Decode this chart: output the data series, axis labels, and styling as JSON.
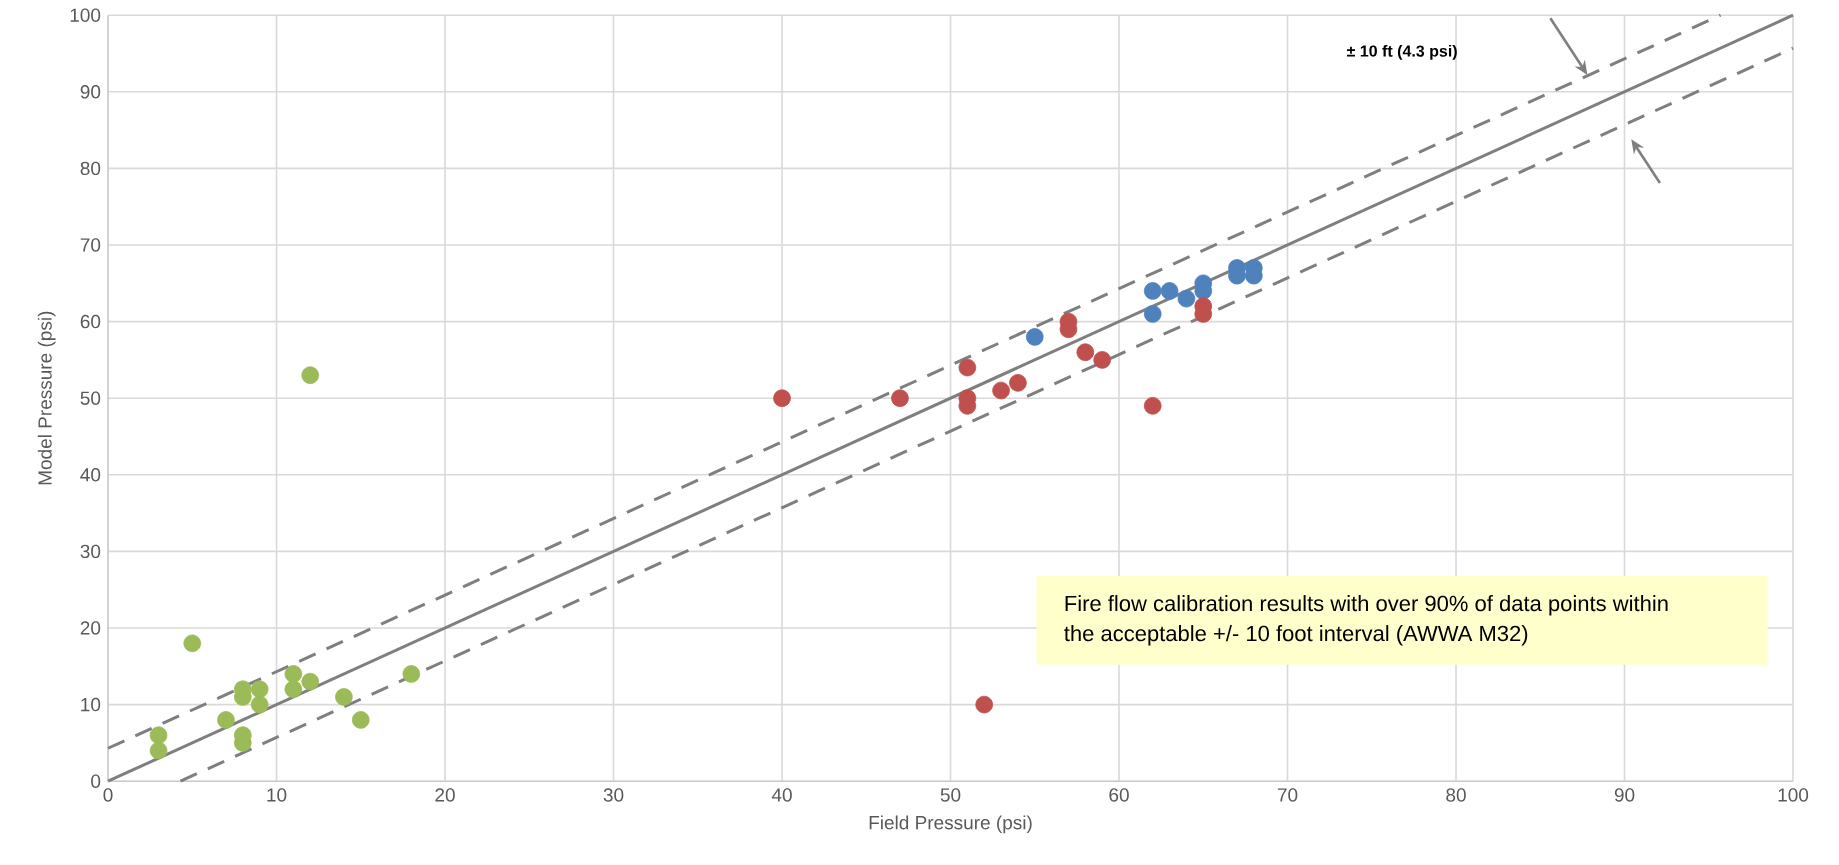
{
  "chart_data": {
    "type": "scatter",
    "xlabel": "Field Pressure (psi)",
    "ylabel": "Model Pressure (psi)",
    "xlim": [
      0,
      100
    ],
    "ylim": [
      0,
      100
    ],
    "xticks": [
      0,
      10,
      20,
      30,
      40,
      50,
      60,
      70,
      80,
      90,
      100
    ],
    "yticks": [
      0,
      10,
      20,
      30,
      40,
      50,
      60,
      70,
      80,
      90,
      100
    ],
    "grid": true,
    "annotations": [
      "± 10 ft (4.3 psi)",
      "Fire flow calibration results with over 90% of data points within the acceptable +/- 10 foot interval (AWWA M32)"
    ],
    "series": [
      {
        "color": "#9bbb59",
        "marker": "circle",
        "x": [
          3,
          3,
          5,
          7,
          8,
          8,
          8,
          8,
          9,
          9,
          11,
          11,
          12,
          12,
          14,
          15,
          18
        ],
        "values": [
          6,
          4,
          18,
          8,
          12,
          11,
          6,
          5,
          12,
          10,
          14,
          12,
          13,
          53,
          11,
          8,
          14
        ]
      },
      {
        "color": "#4f81bd",
        "marker": "circle",
        "x": [
          55,
          62,
          62,
          63,
          64,
          65,
          65,
          67,
          67,
          68,
          68
        ],
        "values": [
          58,
          64,
          61,
          64,
          63,
          65,
          64,
          67,
          66,
          67,
          66
        ]
      },
      {
        "color": "#c0504d",
        "marker": "circle",
        "x": [
          40,
          47,
          51,
          51,
          51,
          52,
          53,
          54,
          57,
          57,
          58,
          59,
          62,
          65,
          65
        ],
        "values": [
          50,
          50,
          54,
          50,
          49,
          10,
          51,
          52,
          60,
          59,
          56,
          55,
          49,
          62,
          61
        ]
      },
      {
        "type": "line",
        "color": "#7f7f7f",
        "marker": "none",
        "line_style": "solid",
        "x": [
          0,
          100
        ],
        "values": [
          0,
          100
        ]
      },
      {
        "type": "line",
        "color": "#7f7f7f",
        "marker": "none",
        "line_style": "dashed",
        "x": [
          0,
          95.7
        ],
        "values": [
          4.3,
          100
        ]
      },
      {
        "type": "line",
        "color": "#7f7f7f",
        "marker": "none",
        "line_style": "dashed",
        "x": [
          4.3,
          100
        ],
        "values": [
          0,
          95.7
        ]
      }
    ]
  }
}
